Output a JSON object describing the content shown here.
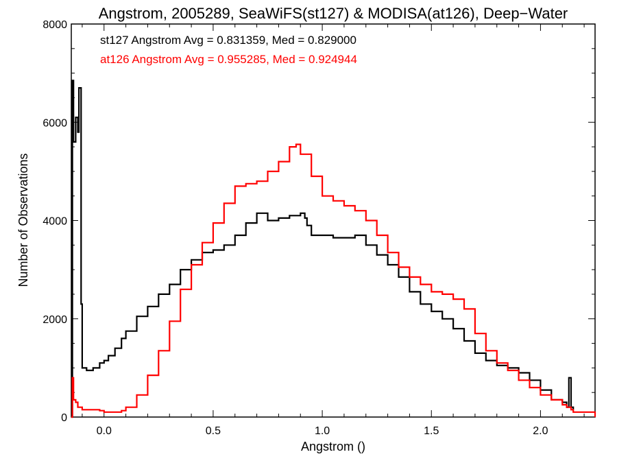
{
  "chart_data": {
    "type": "line",
    "title": "Angstrom, 2005289, SeaWiFS(st127) & MODISA(at126), Deep−Water",
    "xlabel": "Angstrom ()",
    "ylabel": "Number of Observations",
    "xlim": [
      -0.15,
      2.25
    ],
    "ylim": [
      0,
      8000
    ],
    "x_ticks": [
      0.0,
      0.5,
      1.0,
      1.5,
      2.0
    ],
    "x_tick_labels": [
      "0.0",
      "0.5",
      "1.0",
      "1.5",
      "2.0"
    ],
    "y_ticks": [
      0,
      2000,
      4000,
      6000,
      8000
    ],
    "y_tick_labels": [
      "0",
      "2000",
      "4000",
      "6000",
      "8000"
    ],
    "grid": false,
    "step": true,
    "annotations": [
      {
        "text": "st127 Angstrom Avg = 0.831359, Med = 0.829000",
        "color": "#000000"
      },
      {
        "text": "at126 Angstrom Avg = 0.955285, Med = 0.924944",
        "color": "#ff0000"
      }
    ],
    "series": [
      {
        "color": "#000000",
        "x": [
          -0.15,
          -0.145,
          -0.14,
          -0.13,
          -0.12,
          -0.115,
          -0.105,
          -0.1,
          -0.08,
          -0.05,
          -0.02,
          0.0,
          0.02,
          0.05,
          0.08,
          0.1,
          0.15,
          0.2,
          0.25,
          0.3,
          0.35,
          0.4,
          0.45,
          0.5,
          0.55,
          0.6,
          0.65,
          0.7,
          0.75,
          0.8,
          0.85,
          0.9,
          0.92,
          0.93,
          0.95,
          1.0,
          1.05,
          1.1,
          1.15,
          1.2,
          1.25,
          1.3,
          1.35,
          1.4,
          1.45,
          1.5,
          1.55,
          1.6,
          1.65,
          1.7,
          1.75,
          1.8,
          1.85,
          1.9,
          1.95,
          2.0,
          2.05,
          2.1,
          2.12,
          2.13,
          2.14,
          2.15
        ],
        "values": [
          0,
          6850,
          5600,
          6100,
          5800,
          6700,
          2300,
          1000,
          950,
          1000,
          1100,
          1150,
          1250,
          1400,
          1600,
          1750,
          2050,
          2250,
          2500,
          2700,
          3000,
          3200,
          3350,
          3400,
          3500,
          3700,
          3950,
          4150,
          4000,
          4050,
          4100,
          4150,
          4050,
          3900,
          3700,
          3700,
          3650,
          3650,
          3700,
          3500,
          3300,
          3100,
          2850,
          2550,
          2300,
          2150,
          2000,
          1800,
          1550,
          1300,
          1150,
          1050,
          1000,
          900,
          750,
          550,
          350,
          300,
          200,
          800,
          200,
          150
        ]
      },
      {
        "color": "#ff0000",
        "x": [
          -0.15,
          -0.145,
          -0.14,
          -0.13,
          -0.12,
          -0.1,
          -0.08,
          -0.05,
          -0.02,
          0.0,
          0.03,
          0.05,
          0.08,
          0.1,
          0.15,
          0.2,
          0.25,
          0.3,
          0.35,
          0.4,
          0.45,
          0.5,
          0.55,
          0.6,
          0.65,
          0.7,
          0.75,
          0.8,
          0.85,
          0.88,
          0.9,
          0.95,
          1.0,
          1.05,
          1.1,
          1.15,
          1.2,
          1.25,
          1.3,
          1.35,
          1.4,
          1.45,
          1.5,
          1.55,
          1.6,
          1.65,
          1.7,
          1.75,
          1.8,
          1.85,
          1.9,
          1.95,
          2.0,
          2.05,
          2.1,
          2.12,
          2.14,
          2.15,
          2.25
        ],
        "values": [
          0,
          800,
          350,
          300,
          200,
          150,
          150,
          150,
          130,
          100,
          100,
          100,
          130,
          200,
          450,
          850,
          1350,
          1950,
          2600,
          3100,
          3550,
          3950,
          4350,
          4700,
          4750,
          4800,
          5000,
          5200,
          5500,
          5550,
          5350,
          4900,
          4500,
          4400,
          4300,
          4200,
          4000,
          3700,
          3350,
          3050,
          2850,
          2700,
          2550,
          2500,
          2400,
          2200,
          1700,
          1350,
          1100,
          950,
          750,
          600,
          450,
          350,
          250,
          200,
          150,
          100,
          0
        ]
      }
    ]
  }
}
